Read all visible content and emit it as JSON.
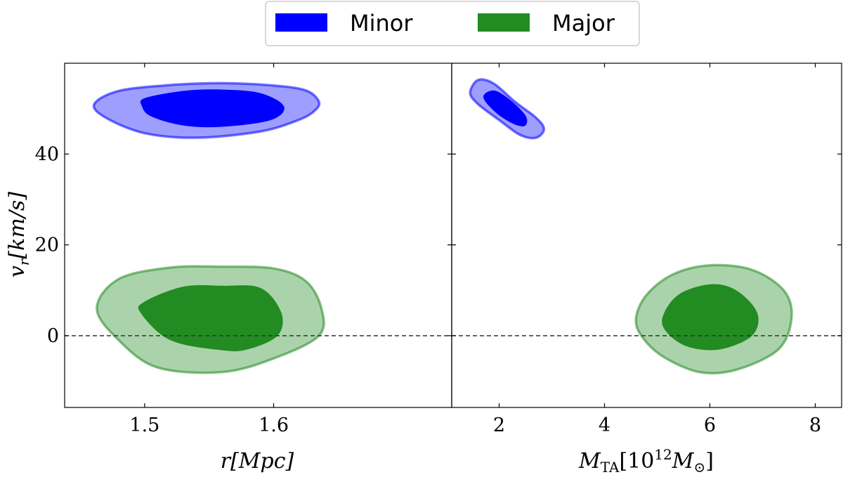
{
  "chart_data": [
    {
      "type": "contour",
      "panel": "left",
      "title": "",
      "xlabel": "r[Mpc]",
      "ylabel": "v_r[km/s]",
      "xlim": [
        1.438,
        1.738
      ],
      "ylim": [
        -15.8,
        60
      ],
      "xticks": [
        1.5,
        1.6
      ],
      "xtick_labels": [
        "1.5",
        "1.6"
      ],
      "yticks": [
        0,
        20,
        40
      ],
      "ytick_labels": [
        "0",
        "20",
        "40"
      ],
      "reference_line": {
        "y": 0,
        "style": "dashed"
      },
      "series": [
        {
          "name": "Minor",
          "color": "#0000ff",
          "levels": [
            {
              "level": "outer",
              "fill_opacity": 0.38,
              "x": [
                1.461,
                1.48,
                1.52,
                1.56,
                1.6,
                1.625,
                1.635,
                1.632,
                1.62,
                1.59,
                1.54,
                1.5,
                1.47,
                1.461
              ],
              "y": [
                51.0,
                53.9,
                55.2,
                55.6,
                55.1,
                54.0,
                51.6,
                49.6,
                47.6,
                45.0,
                43.6,
                44.6,
                48.0,
                51.0
              ]
            },
            {
              "level": "inner",
              "fill_opacity": 1.0,
              "x": [
                1.498,
                1.5,
                1.53,
                1.56,
                1.59,
                1.608,
                1.598,
                1.56,
                1.53,
                1.505,
                1.498
              ],
              "y": [
                50.5,
                52.3,
                53.9,
                54.2,
                53.4,
                50.5,
                47.5,
                46.0,
                46.3,
                48.3,
                50.5
              ]
            }
          ]
        },
        {
          "name": "Major",
          "color": "#228b22",
          "levels": [
            {
              "level": "outer",
              "fill_opacity": 0.38,
              "x": [
                1.463,
                1.48,
                1.52,
                1.56,
                1.6,
                1.625,
                1.637,
                1.635,
                1.6,
                1.56,
                1.51,
                1.48,
                1.463
              ],
              "y": [
                6.0,
                12.5,
                15.0,
                15.2,
                14.8,
                12.0,
                6.0,
                0.0,
                -5.0,
                -8.0,
                -7.0,
                -1.0,
                6.0
              ]
            },
            {
              "level": "inner",
              "fill_opacity": 1.0,
              "x": [
                1.497,
                1.5,
                1.53,
                1.56,
                1.59,
                1.606,
                1.603,
                1.58,
                1.56,
                1.52,
                1.497
              ],
              "y": [
                5.0,
                7.5,
                10.8,
                11.0,
                10.5,
                5.0,
                0.0,
                -3.0,
                -3.2,
                -1.0,
                5.0
              ]
            }
          ]
        }
      ]
    },
    {
      "type": "contour",
      "panel": "right",
      "title": "",
      "xlabel": "M_TA[10^12 M_⊙]",
      "ylabel": "",
      "xlim": [
        1.1,
        8.5
      ],
      "ylim": [
        -15.8,
        60
      ],
      "xticks": [
        2,
        4,
        6,
        8
      ],
      "xtick_labels": [
        "2",
        "4",
        "6",
        "8"
      ],
      "yticks": [
        0,
        20,
        40
      ],
      "ytick_labels": [
        "",
        "",
        ""
      ],
      "reference_line": {
        "y": 0,
        "style": "dashed"
      },
      "series": [
        {
          "name": "Minor",
          "color": "#0000ff",
          "levels": [
            {
              "level": "outer",
              "fill_opacity": 0.38,
              "x": [
                1.45,
                1.6,
                1.9,
                2.3,
                2.7,
                2.85,
                2.7,
                2.4,
                2.0,
                1.6,
                1.45
              ],
              "y": [
                53.5,
                56.3,
                55.5,
                51.5,
                48.0,
                45.5,
                43.6,
                44.2,
                47.5,
                51.0,
                53.5
              ]
            },
            {
              "level": "inner",
              "fill_opacity": 1.0,
              "x": [
                1.7,
                1.9,
                2.2,
                2.5,
                2.5,
                2.3,
                1.95,
                1.7
              ],
              "y": [
                52.5,
                54.0,
                52.0,
                48.5,
                46.3,
                46.5,
                49.0,
                52.5
              ]
            }
          ]
        },
        {
          "name": "Major",
          "color": "#228b22",
          "levels": [
            {
              "level": "outer",
              "fill_opacity": 0.38,
              "x": [
                4.6,
                4.8,
                5.3,
                6.0,
                6.8,
                7.4,
                7.55,
                7.3,
                6.5,
                5.8,
                5.1,
                4.7,
                4.6
              ],
              "y": [
                4.0,
                9.0,
                13.5,
                15.5,
                14.5,
                10.0,
                4.0,
                -3.0,
                -7.5,
                -8.0,
                -4.5,
                0.0,
                4.0
              ]
            },
            {
              "level": "inner",
              "fill_opacity": 1.0,
              "x": [
                5.1,
                5.4,
                6.0,
                6.5,
                6.9,
                6.8,
                6.2,
                5.6,
                5.2,
                5.1
              ],
              "y": [
                4.0,
                9.0,
                11.3,
                10.0,
                5.0,
                0.0,
                -3.0,
                -2.5,
                0.5,
                4.0
              ]
            }
          ]
        }
      ]
    }
  ],
  "legend": {
    "placement": "top-center",
    "entries": [
      {
        "name": "Minor",
        "label": "Minor",
        "color": "#0000ff"
      },
      {
        "name": "Major",
        "label": "Major",
        "color": "#228b22"
      }
    ]
  },
  "labels": {
    "y_axis": {
      "main": "v",
      "sub": "r",
      "rest": "[km/s]"
    },
    "x_axis_left": {
      "main": "r",
      "rest": "[Mpc]"
    },
    "x_axis_right": {
      "main": "M",
      "sub": "TA",
      "rest_open": "[10",
      "sup": "12",
      "main2": "M",
      "sub2": "⊙",
      "rest_close": "]"
    }
  }
}
